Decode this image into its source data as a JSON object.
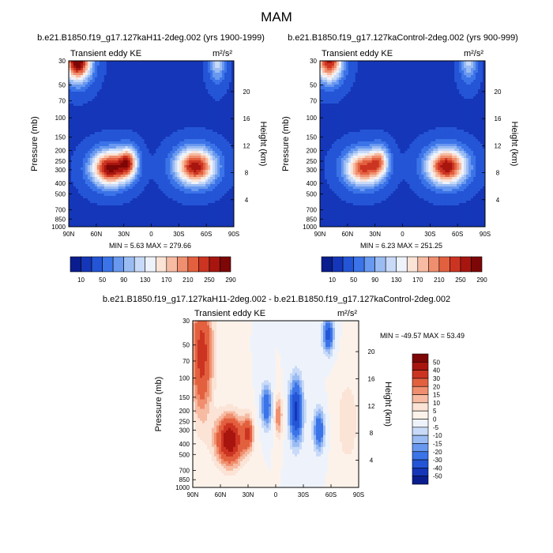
{
  "page_title": "MAM",
  "colormap_main": [
    "#0a1d8e",
    "#1536b8",
    "#2455d6",
    "#3b73e8",
    "#6898ef",
    "#9bbcf3",
    "#c8daf8",
    "#eef3fb",
    "#fbe3d6",
    "#f6bba2",
    "#ef8f6f",
    "#e3603f",
    "#cc3422",
    "#a8150f",
    "#7d0606"
  ],
  "colormap_diff": [
    "#0a1d8e",
    "#1536b8",
    "#2455d6",
    "#3b73e8",
    "#6898ef",
    "#9bbcf3",
    "#c8daf8",
    "#eef3fb",
    "#fdf2ea",
    "#fbe3d6",
    "#f6bba2",
    "#ef8f6f",
    "#e3603f",
    "#cc3422",
    "#a8150f",
    "#7d0606"
  ],
  "chart_data": [
    {
      "type": "heatmap",
      "title": "b.e21.B1850.f19_g17.127kaH11-2deg.002 (yrs 1900-1999)",
      "subtitle_left": "Transient eddy KE",
      "subtitle_right": "m²/s²",
      "ylabel": "Pressure (mb)",
      "ylabel_right": "Height (km)",
      "x_ticks": [
        "90N",
        "60N",
        "30N",
        "0",
        "30S",
        "60S",
        "90S"
      ],
      "y_ticks": [
        "30",
        "50",
        "70",
        "100",
        "150",
        "200",
        "250",
        "300",
        "400",
        "500",
        "700",
        "850",
        "1000"
      ],
      "height_ticks": [
        "20",
        "16",
        "12",
        "8",
        "4"
      ],
      "min_max_label": "MIN =   5.63   MAX = 279.66",
      "min": 5.63,
      "max": 279.66,
      "levels": [
        10,
        30,
        50,
        70,
        90,
        110,
        130,
        150,
        170,
        190,
        210,
        230,
        250,
        270
      ],
      "colorbar_labels": [
        "10",
        "50",
        "90",
        "130",
        "170",
        "210",
        "250",
        "290"
      ],
      "features": [
        {
          "lat": 45,
          "pressure": 290,
          "value": 250,
          "sigma_lat": 14,
          "sigma_z": 0.26
        },
        {
          "lat": 25,
          "pressure": 255,
          "value": 160,
          "sigma_lat": 7,
          "sigma_z": 0.22
        },
        {
          "lat": -48,
          "pressure": 280,
          "value": 238,
          "sigma_lat": 15,
          "sigma_z": 0.27
        },
        {
          "lat": 80,
          "pressure": 30,
          "value": 270,
          "sigma_lat": 10,
          "sigma_z": 0.3
        },
        {
          "lat": -72,
          "pressure": 30,
          "value": 95,
          "sigma_lat": 6,
          "sigma_z": 0.3
        }
      ]
    },
    {
      "type": "heatmap",
      "title": "b.e21.B1850.f19_g17.127kaControl-2deg.002 (yrs 900-999)",
      "subtitle_left": "Transient eddy KE",
      "subtitle_right": "m²/s²",
      "ylabel": "Pressure (mb)",
      "ylabel_right": "Height (km)",
      "x_ticks": [
        "90N",
        "60N",
        "30N",
        "0",
        "30S",
        "60S",
        "90S"
      ],
      "y_ticks": [
        "30",
        "50",
        "70",
        "100",
        "150",
        "200",
        "250",
        "300",
        "400",
        "500",
        "700",
        "850",
        "1000"
      ],
      "height_ticks": [
        "20",
        "16",
        "12",
        "8",
        "4"
      ],
      "min_max_label": "MIN =   6.23   MAX = 251.25",
      "min": 6.23,
      "max": 251.25,
      "levels": [
        10,
        30,
        50,
        70,
        90,
        110,
        130,
        150,
        170,
        190,
        210,
        230,
        250,
        270
      ],
      "colorbar_labels": [
        "10",
        "50",
        "90",
        "130",
        "170",
        "210",
        "250",
        "290"
      ],
      "features": [
        {
          "lat": 43,
          "pressure": 290,
          "value": 205,
          "sigma_lat": 14,
          "sigma_z": 0.26
        },
        {
          "lat": 25,
          "pressure": 250,
          "value": 120,
          "sigma_lat": 7,
          "sigma_z": 0.22
        },
        {
          "lat": -48,
          "pressure": 280,
          "value": 240,
          "sigma_lat": 15,
          "sigma_z": 0.27
        },
        {
          "lat": 80,
          "pressure": 30,
          "value": 230,
          "sigma_lat": 10,
          "sigma_z": 0.3
        },
        {
          "lat": -72,
          "pressure": 30,
          "value": 90,
          "sigma_lat": 6,
          "sigma_z": 0.3
        }
      ]
    },
    {
      "type": "heatmap",
      "title": "b.e21.B1850.f19_g17.127kaH11-2deg.002 - b.e21.B1850.f19_g17.127kaControl-2deg.002",
      "subtitle_left": "Transient eddy KE",
      "subtitle_right": "m²/s²",
      "ylabel": "Pressure (mb)",
      "ylabel_right": "Height (km)",
      "x_ticks": [
        "90N",
        "60N",
        "30N",
        "0",
        "30S",
        "60S",
        "90S"
      ],
      "y_ticks": [
        "30",
        "50",
        "70",
        "100",
        "150",
        "200",
        "250",
        "300",
        "400",
        "500",
        "700",
        "850",
        "1000"
      ],
      "height_ticks": [
        "20",
        "16",
        "12",
        "8",
        "4"
      ],
      "min_max_label": "MIN = -49.57  MAX =  53.49",
      "min": -49.57,
      "max": 53.49,
      "levels": [
        -50,
        -40,
        -30,
        -20,
        -15,
        -10,
        -5,
        0,
        5,
        10,
        15,
        20,
        30,
        40,
        50
      ],
      "colorbar_labels": [
        "50",
        "40",
        "30",
        "20",
        "15",
        "10",
        "5",
        "0",
        "-5",
        "-10",
        "-15",
        "-20",
        "-30",
        "-40",
        "-50"
      ],
      "features": [
        {
          "lat": 50,
          "pressure": 370,
          "value": 50,
          "sigma_lat": 10,
          "sigma_z": 0.35
        },
        {
          "lat": 80,
          "pressure": 60,
          "value": 35,
          "sigma_lat": 8,
          "sigma_z": 0.9
        },
        {
          "lat": 30,
          "pressure": 320,
          "value": 28,
          "sigma_lat": 4,
          "sigma_z": 0.25
        },
        {
          "lat": 10,
          "pressure": 180,
          "value": -30,
          "sigma_lat": 4,
          "sigma_z": 0.3
        },
        {
          "lat": -3,
          "pressure": 220,
          "value": 20,
          "sigma_lat": 3,
          "sigma_z": 0.3
        },
        {
          "lat": -22,
          "pressure": 200,
          "value": -45,
          "sigma_lat": 5,
          "sigma_z": 0.45
        },
        {
          "lat": -47,
          "pressure": 300,
          "value": -30,
          "sigma_lat": 4,
          "sigma_z": 0.3
        },
        {
          "lat": -57,
          "pressure": 40,
          "value": -35,
          "sigma_lat": 4,
          "sigma_z": 0.25
        },
        {
          "lat": -78,
          "pressure": 250,
          "value": 10,
          "sigma_lat": 8,
          "sigma_z": 0.6
        }
      ]
    }
  ]
}
